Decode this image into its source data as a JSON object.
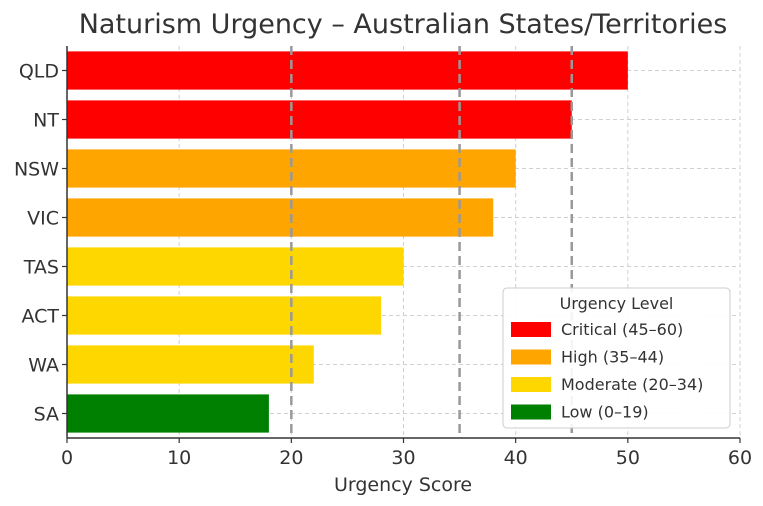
{
  "chart_data": {
    "type": "bar",
    "orientation": "horizontal",
    "title": "Naturism Urgency – Australian States/Territories",
    "xlabel": "Urgency Score",
    "ylabel": "",
    "xlim": [
      0,
      60
    ],
    "xticks": [
      "0",
      "10",
      "20",
      "30",
      "40",
      "50",
      "60"
    ],
    "grid": true,
    "categories": [
      "QLD",
      "NT",
      "NSW",
      "VIC",
      "TAS",
      "ACT",
      "WA",
      "SA"
    ],
    "values": [
      50,
      45,
      40,
      38,
      30,
      28,
      22,
      18
    ],
    "bar_colors": [
      "#ff0000",
      "#ff0000",
      "#ffa500",
      "#ffa500",
      "#ffd700",
      "#ffd700",
      "#ffd700",
      "#008000"
    ],
    "threshold_lines": [
      20,
      35,
      45
    ],
    "legend": {
      "title": "Urgency Level",
      "placement": "lower-right",
      "entries": [
        {
          "label": "Critical (45–60)",
          "color": "#ff0000"
        },
        {
          "label": "High (35–44)",
          "color": "#ffa500"
        },
        {
          "label": "Moderate (20–34)",
          "color": "#ffd700"
        },
        {
          "label": "Low (0–19)",
          "color": "#008000"
        }
      ]
    }
  }
}
